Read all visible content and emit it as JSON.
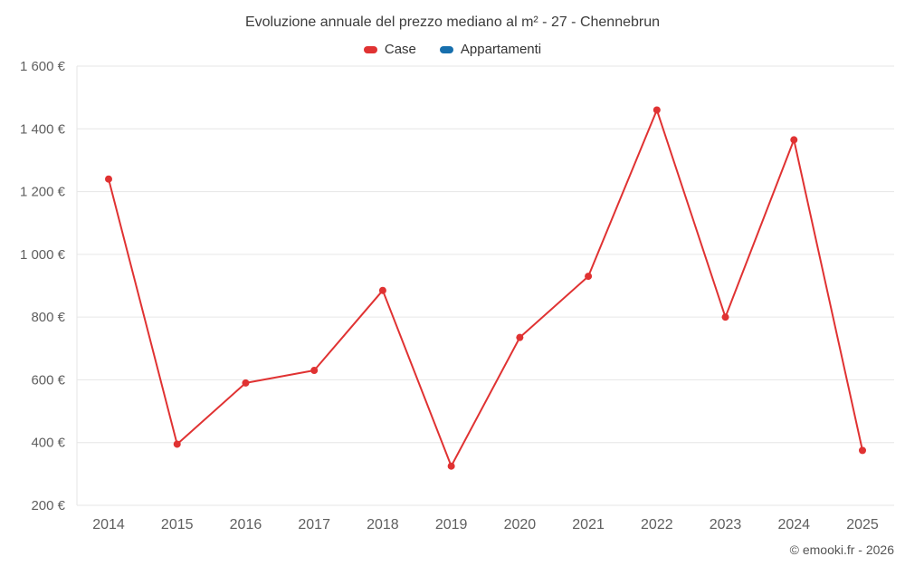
{
  "chart_data": {
    "type": "line",
    "title": "Evoluzione annuale del prezzo mediano al m² - 27 - Chennebrun",
    "categories": [
      "2014",
      "2015",
      "2016",
      "2017",
      "2018",
      "2019",
      "2020",
      "2021",
      "2022",
      "2023",
      "2024",
      "2025"
    ],
    "series": [
      {
        "name": "Case",
        "color": "#e03232",
        "values": [
          1240,
          395,
          590,
          630,
          885,
          325,
          735,
          930,
          1460,
          800,
          1365,
          375
        ]
      },
      {
        "name": "Appartamenti",
        "color": "#176fad",
        "values": []
      }
    ],
    "ylim": [
      200,
      1600
    ],
    "y_ticks": [
      200,
      400,
      600,
      800,
      1000,
      1200,
      1400,
      1600
    ],
    "y_tick_labels": [
      "200 €",
      "400 €",
      "600 €",
      "800 €",
      "1 000 €",
      "1 200 €",
      "1 400 €",
      "1 600 €"
    ],
    "grid": "horizontal",
    "legend_position": "top",
    "marker": "circle",
    "xlabel": "",
    "ylabel": ""
  },
  "legend": {
    "items": [
      {
        "label": "Case",
        "color": "#e03232"
      },
      {
        "label": "Appartamenti",
        "color": "#176fad"
      }
    ]
  },
  "footer": {
    "copyright": "© emooki.fr - 2026"
  },
  "colors": {
    "grid": "#e6e6e6",
    "axis_text": "#5f5f5f",
    "title_text": "#3d3d3d",
    "background": "#ffffff"
  }
}
